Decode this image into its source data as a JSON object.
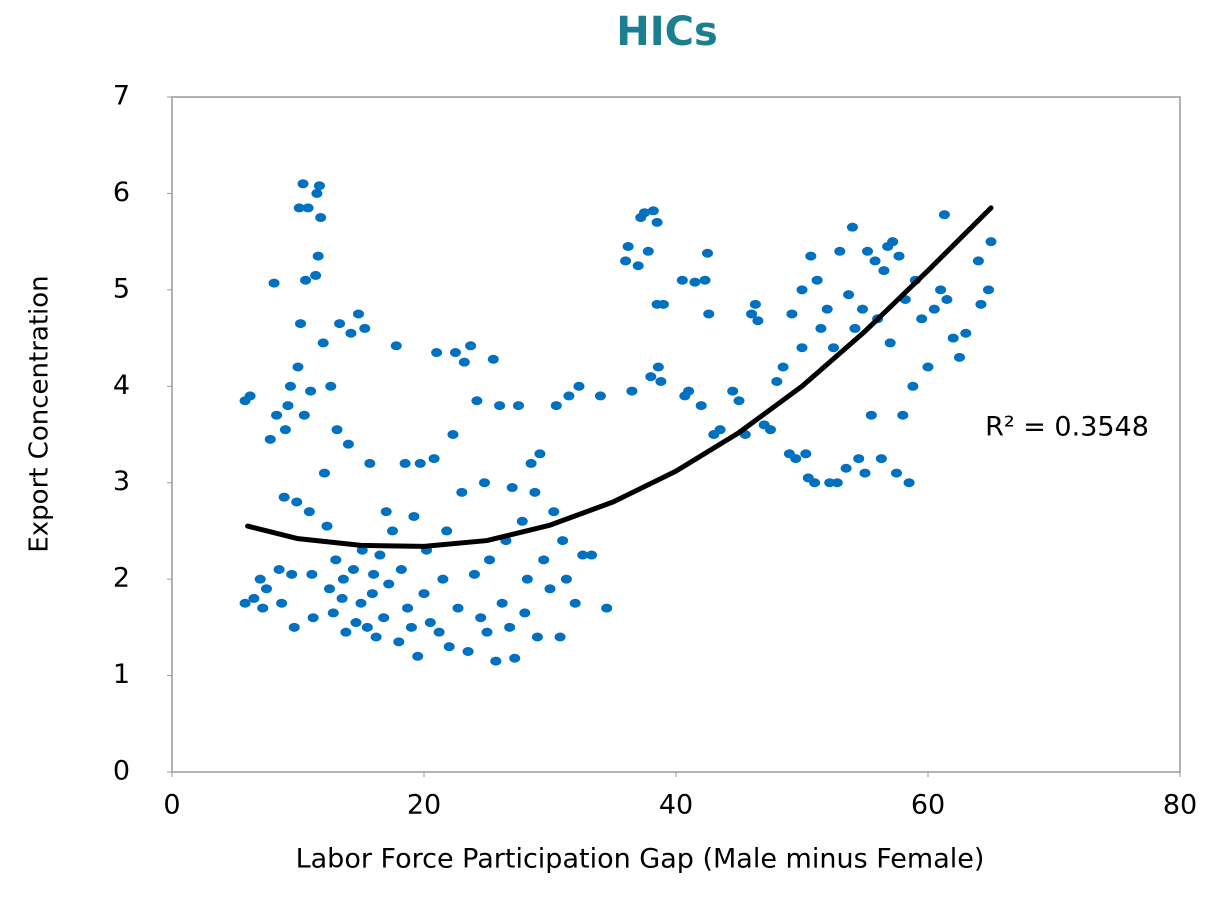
{
  "chart_data": {
    "type": "scatter",
    "title": "HICs",
    "x_label": "Labor Force Participation Gap (Male minus Female)",
    "y_label": "Export Concentration",
    "annotation": "R² = 0.3548",
    "xlim": [
      0,
      80
    ],
    "xticks": [
      0,
      20,
      40,
      60,
      80
    ],
    "ylim": [
      0,
      7
    ],
    "yticks": [
      0,
      1,
      2,
      3,
      4,
      5,
      6,
      7
    ],
    "grid": false,
    "series": [
      {
        "mode": "markers",
        "color": "#0070c0",
        "x": [
          5.8,
          6.2,
          5.8,
          6.5,
          7,
          7.2,
          7.5,
          7.8,
          8.1,
          8.3,
          8.5,
          8.7,
          8.9,
          9,
          9.2,
          9.4,
          9.5,
          9.7,
          9.9,
          10,
          10.1,
          10.2,
          10.4,
          10.5,
          10.6,
          10.8,
          10.9,
          11,
          11.1,
          11.2,
          11.4,
          11.5,
          11.6,
          11.7,
          11.8,
          12,
          12.1,
          12.3,
          12.5,
          12.6,
          12.8,
          13,
          13.1,
          13.3,
          13.5,
          13.6,
          13.8,
          14,
          14.2,
          14.4,
          14.6,
          14.8,
          15,
          15.1,
          15.3,
          15.5,
          15.7,
          15.9,
          16,
          16.2,
          16.5,
          16.8,
          17,
          17.2,
          17.5,
          17.8,
          18,
          18.2,
          18.5,
          18.7,
          19,
          19.2,
          19.5,
          19.7,
          20,
          20.2,
          20.5,
          20.8,
          21,
          21.2,
          21.5,
          21.8,
          22,
          22.3,
          22.5,
          22.7,
          23,
          23.2,
          23.5,
          23.7,
          24,
          24.2,
          24.5,
          24.8,
          25,
          25.2,
          25.5,
          25.7,
          26,
          26.2,
          26.5,
          26.8,
          27,
          27.2,
          27.5,
          27.8,
          28,
          28.2,
          28.5,
          28.8,
          29,
          29.2,
          29.5,
          30,
          30.3,
          30.5,
          30.8,
          31,
          31.3,
          31.5,
          32,
          32.3,
          32.6,
          33.3,
          34,
          34.5,
          36,
          36.2,
          36.5,
          37,
          37.2,
          37.5,
          37.8,
          38,
          38.2,
          38.5,
          38.6,
          38.8,
          38.5,
          39,
          40.5,
          40.7,
          41,
          41.5,
          42,
          42.3,
          42.5,
          42.6,
          43,
          43.5,
          44.5,
          45,
          45.5,
          46,
          46.3,
          46.5,
          47,
          47.5,
          48,
          48.5,
          49,
          49.2,
          49.5,
          50,
          50,
          50.3,
          50.5,
          50.7,
          51,
          51.2,
          51.5,
          52,
          52.2,
          52.5,
          52.8,
          53,
          53.5,
          53.7,
          54,
          54.2,
          54.5,
          54.8,
          55,
          55.2,
          55.5,
          55.8,
          56,
          56.3,
          56.5,
          56.8,
          57,
          57.2,
          57.5,
          57.7,
          58,
          58.2,
          58.5,
          58.8,
          59,
          59.5,
          60,
          60.5,
          61,
          61.3,
          61.5,
          62,
          62.5,
          63,
          64,
          64.2,
          64.8,
          65
        ],
        "values": [
          3.85,
          3.9,
          1.75,
          1.8,
          2.0,
          1.7,
          1.9,
          3.45,
          5.07,
          3.7,
          2.1,
          1.75,
          2.85,
          3.55,
          3.8,
          4.0,
          2.05,
          1.5,
          2.8,
          4.2,
          5.85,
          4.65,
          6.1,
          3.7,
          5.1,
          5.85,
          2.7,
          3.95,
          2.05,
          1.6,
          5.15,
          6.0,
          5.35,
          6.08,
          5.75,
          4.45,
          3.1,
          2.55,
          1.9,
          4.0,
          1.65,
          2.2,
          3.55,
          4.65,
          1.8,
          2.0,
          1.45,
          3.4,
          4.55,
          2.1,
          1.55,
          4.75,
          1.75,
          2.3,
          4.6,
          1.5,
          3.2,
          1.85,
          2.05,
          1.4,
          2.25,
          1.6,
          2.7,
          1.95,
          2.5,
          4.42,
          1.35,
          2.1,
          3.2,
          1.7,
          1.5,
          2.65,
          1.2,
          3.2,
          1.85,
          2.3,
          1.55,
          3.25,
          4.35,
          1.45,
          2.0,
          2.5,
          1.3,
          3.5,
          4.35,
          1.7,
          2.9,
          4.25,
          1.25,
          4.42,
          2.05,
          3.85,
          1.6,
          3.0,
          1.45,
          2.2,
          4.28,
          1.15,
          3.8,
          1.75,
          2.4,
          1.5,
          2.95,
          1.18,
          3.8,
          2.6,
          1.65,
          2.0,
          3.2,
          2.9,
          1.4,
          3.3,
          2.2,
          1.9,
          2.7,
          3.8,
          1.4,
          2.4,
          2.0,
          3.9,
          1.75,
          4.0,
          2.25,
          2.25,
          3.9,
          1.7,
          5.3,
          5.45,
          3.95,
          5.25,
          5.75,
          5.8,
          5.4,
          4.1,
          5.82,
          5.7,
          4.2,
          4.05,
          4.85,
          4.85,
          5.1,
          3.9,
          3.95,
          5.08,
          3.8,
          5.1,
          5.38,
          4.75,
          3.5,
          3.55,
          3.95,
          3.85,
          3.5,
          4.75,
          4.85,
          4.68,
          3.6,
          3.55,
          4.05,
          4.2,
          3.3,
          4.75,
          3.25,
          5.0,
          4.4,
          3.3,
          3.05,
          5.35,
          3.0,
          5.1,
          4.6,
          4.8,
          3.0,
          4.4,
          3.0,
          5.4,
          3.15,
          4.95,
          5.65,
          4.6,
          3.25,
          4.8,
          3.1,
          5.4,
          3.7,
          5.3,
          4.7,
          3.25,
          5.2,
          5.45,
          4.45,
          5.5,
          3.1,
          5.35,
          3.7,
          4.9,
          3.0,
          4.0,
          5.1,
          4.7,
          4.2,
          4.8,
          5.0,
          5.78,
          4.9,
          4.5,
          4.3,
          4.55,
          5.3,
          4.85,
          5.0,
          5.5
        ]
      },
      {
        "mode": "line",
        "color": "#000000",
        "x": [
          6,
          10,
          15,
          20,
          25,
          30,
          35,
          40,
          45,
          50,
          55,
          60,
          65
        ],
        "values": [
          2.55,
          2.42,
          2.35,
          2.34,
          2.4,
          2.56,
          2.8,
          3.12,
          3.52,
          4.0,
          4.57,
          5.2,
          5.85
        ]
      }
    ]
  }
}
